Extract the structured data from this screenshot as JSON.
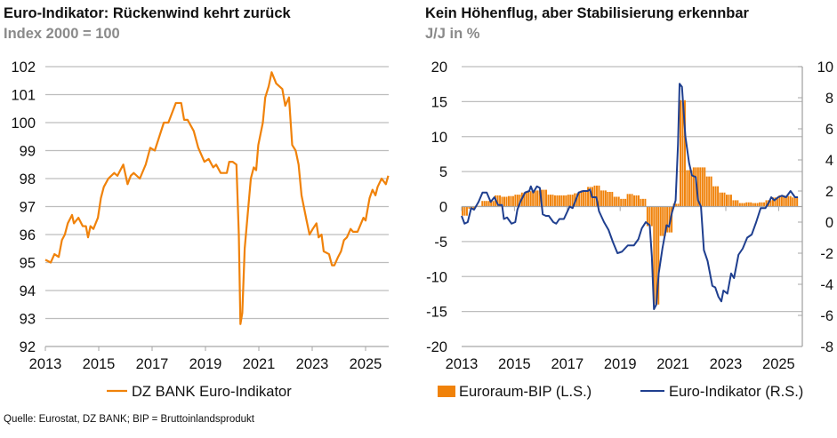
{
  "chart_data": [
    {
      "type": "line",
      "title": "Euro-Indikator: Rückenwind kehrt zurück",
      "subtitle": "Index 2000 = 100",
      "ylim": [
        92,
        102
      ],
      "yticks": [
        "92",
        "93",
        "94",
        "95",
        "96",
        "97",
        "98",
        "99",
        "100",
        "101",
        "102"
      ],
      "xticks": [
        "2013",
        "2015",
        "2017",
        "2019",
        "2021",
        "2023",
        "2025"
      ],
      "grid": true,
      "legend": "bottom",
      "series": [
        {
          "name": "DZ BANK Euro-Indikator",
          "color": "#f0820a",
          "x": [
            2013.0,
            2013.2,
            2013.34,
            2013.5,
            2013.62,
            2013.73,
            2013.84,
            2014.0,
            2014.07,
            2014.24,
            2014.4,
            2014.52,
            2014.6,
            2014.69,
            2014.8,
            2014.97,
            2015.08,
            2015.19,
            2015.36,
            2015.58,
            2015.7,
            2015.92,
            2016.08,
            2016.2,
            2016.31,
            2016.54,
            2016.76,
            2016.93,
            2017.1,
            2017.27,
            2017.44,
            2017.61,
            2017.89,
            2018.09,
            2018.2,
            2018.33,
            2018.56,
            2018.73,
            2018.96,
            2019.12,
            2019.29,
            2019.4,
            2019.57,
            2019.8,
            2019.89,
            2020.02,
            2020.16,
            2020.25,
            2020.31,
            2020.38,
            2020.47,
            2020.7,
            2020.81,
            2020.9,
            2020.98,
            2021.15,
            2021.24,
            2021.37,
            2021.48,
            2021.65,
            2021.88,
            2021.99,
            2022.13,
            2022.25,
            2022.38,
            2022.49,
            2022.6,
            2022.79,
            2022.9,
            2023.02,
            2023.16,
            2023.24,
            2023.35,
            2023.43,
            2023.63,
            2023.74,
            2023.83,
            2023.97,
            2024.08,
            2024.19,
            2024.3,
            2024.44,
            2024.53,
            2024.7,
            2024.92,
            2025.0,
            2025.15,
            2025.26,
            2025.37,
            2025.45,
            2025.6,
            2025.76,
            2025.85
          ],
          "y": [
            95.1,
            95.0,
            95.3,
            95.2,
            95.8,
            96.0,
            96.4,
            96.7,
            96.4,
            96.6,
            96.3,
            96.3,
            95.9,
            96.3,
            96.2,
            96.6,
            97.3,
            97.7,
            98.0,
            98.2,
            98.1,
            98.5,
            97.8,
            98.1,
            98.2,
            98.0,
            98.5,
            99.1,
            99.0,
            99.5,
            100.0,
            100.0,
            100.7,
            100.7,
            100.1,
            100.1,
            99.7,
            99.1,
            98.6,
            98.7,
            98.4,
            98.5,
            98.2,
            98.2,
            98.6,
            98.6,
            98.5,
            96.0,
            92.8,
            93.2,
            95.5,
            98.0,
            98.4,
            98.3,
            99.2,
            100.0,
            100.9,
            101.3,
            101.8,
            101.4,
            101.2,
            100.6,
            100.9,
            99.2,
            99.0,
            98.5,
            97.4,
            96.5,
            96.0,
            96.2,
            96.4,
            95.9,
            96.0,
            95.4,
            95.3,
            94.9,
            94.9,
            95.2,
            95.4,
            95.8,
            95.9,
            96.2,
            96.1,
            96.1,
            96.6,
            96.5,
            97.3,
            97.6,
            97.4,
            97.7,
            98.0,
            97.8,
            98.1
          ]
        }
      ]
    },
    {
      "type": "bar+line",
      "title": "Kein Höhenflug, aber Stabilisierung erkennbar",
      "subtitle": "J/J in %",
      "ylim_left": [
        -20,
        20
      ],
      "yticks_left": [
        "-20",
        "-15",
        "-10",
        "-5",
        "0",
        "5",
        "10",
        "15",
        "20"
      ],
      "ylim_right": [
        -8,
        10
      ],
      "yticks_right": [
        "-8",
        "-6",
        "-4",
        "-2",
        "0",
        "2",
        "4",
        "6",
        "8",
        "10"
      ],
      "xticks": [
        "2013",
        "2015",
        "2017",
        "2019",
        "2021",
        "2023",
        "2025"
      ],
      "grid": true,
      "legend": "bottom",
      "series": [
        {
          "name": "Euroraum-BIP (L.S.)",
          "type": "bar",
          "axis": "left",
          "color": "#f0820a",
          "quarters": [
            "2013Q1",
            "2013Q2",
            "2013Q3",
            "2013Q4",
            "2014Q1",
            "2014Q2",
            "2014Q3",
            "2014Q4",
            "2015Q1",
            "2015Q2",
            "2015Q3",
            "2015Q4",
            "2016Q1",
            "2016Q2",
            "2016Q3",
            "2016Q4",
            "2017Q1",
            "2017Q2",
            "2017Q3",
            "2017Q4",
            "2018Q1",
            "2018Q2",
            "2018Q3",
            "2018Q4",
            "2019Q1",
            "2019Q2",
            "2019Q3",
            "2019Q4",
            "2020Q1",
            "2020Q2",
            "2020Q3",
            "2020Q4",
            "2021Q1",
            "2021Q2",
            "2021Q3",
            "2021Q4",
            "2022Q1",
            "2022Q2",
            "2022Q3",
            "2022Q4",
            "2023Q1",
            "2023Q2",
            "2023Q3",
            "2023Q4",
            "2024Q1",
            "2024Q2",
            "2024Q3",
            "2024Q4",
            "2025Q1",
            "2025Q2",
            "2025Q3"
          ],
          "values": [
            -1.3,
            -0.3,
            0.1,
            0.8,
            0.8,
            1.6,
            1.4,
            1.5,
            1.7,
            2.0,
            2.2,
            2.3,
            2.4,
            1.7,
            1.6,
            1.6,
            1.7,
            1.9,
            2.3,
            2.8,
            3.0,
            2.3,
            2.1,
            1.4,
            1.1,
            1.8,
            1.6,
            1.1,
            -2.8,
            -14.0,
            -4.2,
            -3.7,
            0.4,
            15.2,
            5.2,
            5.6,
            5.6,
            4.3,
            2.9,
            2.0,
            1.7,
            0.9,
            0.5,
            0.6,
            0.5,
            0.6,
            0.9,
            1.3,
            1.6,
            1.5,
            1.3
          ]
        },
        {
          "name": "Euro-Indikator (R.S.)",
          "type": "line",
          "axis": "right",
          "color": "#1f3f8f",
          "x": [
            2013.0,
            2013.11,
            2013.23,
            2013.36,
            2013.47,
            2013.64,
            2013.79,
            2013.95,
            2014.1,
            2014.24,
            2014.38,
            2014.53,
            2014.6,
            2014.72,
            2014.89,
            2015.03,
            2015.11,
            2015.22,
            2015.4,
            2015.56,
            2015.62,
            2015.71,
            2015.85,
            2015.96,
            2016.07,
            2016.19,
            2016.3,
            2016.47,
            2016.58,
            2016.7,
            2016.87,
            2016.98,
            2017.09,
            2017.2,
            2017.43,
            2017.6,
            2017.77,
            2017.86,
            2017.94,
            2018.1,
            2018.2,
            2018.39,
            2018.56,
            2018.73,
            2018.9,
            2019.07,
            2019.18,
            2019.29,
            2019.41,
            2019.52,
            2019.69,
            2019.82,
            2019.97,
            2020.12,
            2020.2,
            2020.28,
            2020.37,
            2020.46,
            2020.6,
            2020.76,
            2020.85,
            2020.96,
            2021.1,
            2021.19,
            2021.25,
            2021.34,
            2021.47,
            2021.61,
            2021.72,
            2021.86,
            2021.95,
            2022.06,
            2022.17,
            2022.31,
            2022.49,
            2022.6,
            2022.72,
            2022.83,
            2022.91,
            2023.06,
            2023.2,
            2023.31,
            2023.48,
            2023.64,
            2023.81,
            2023.98,
            2024.15,
            2024.32,
            2024.5,
            2024.64,
            2024.72,
            2024.84,
            2024.98,
            2025.12,
            2025.28,
            2025.45,
            2025.62,
            2025.73
          ],
          "y": [
            0.4,
            -0.1,
            0.0,
            0.9,
            0.8,
            1.3,
            1.9,
            1.9,
            1.3,
            1.6,
            1.1,
            1.1,
            0.2,
            0.3,
            -0.1,
            0.0,
            0.8,
            1.3,
            1.9,
            2.0,
            2.3,
            1.9,
            2.3,
            2.2,
            0.5,
            0.4,
            0.4,
            0.0,
            -0.1,
            0.2,
            0.2,
            0.6,
            1.0,
            0.9,
            1.9,
            2.0,
            2.0,
            2.1,
            1.6,
            1.6,
            0.7,
            0.0,
            -0.5,
            -1.3,
            -2.0,
            -1.9,
            -1.7,
            -1.5,
            -1.5,
            -1.5,
            -1.1,
            -0.4,
            0.0,
            -0.2,
            -2.2,
            -5.6,
            -5.3,
            -3.3,
            -1.7,
            -0.2,
            -0.3,
            0.6,
            1.4,
            5.0,
            8.9,
            8.7,
            5.5,
            3.8,
            3.0,
            2.9,
            1.4,
            1.0,
            -1.8,
            -2.5,
            -4.1,
            -4.2,
            -4.8,
            -5.1,
            -4.4,
            -4.6,
            -3.3,
            -3.6,
            -2.1,
            -1.7,
            -1.0,
            -0.8,
            0.0,
            0.9,
            0.9,
            1.3,
            1.6,
            1.4,
            1.6,
            1.7,
            1.6,
            2.0,
            1.6,
            1.6
          ]
        }
      ]
    }
  ],
  "footer": {
    "source": "Quelle: Eurostat, DZ BANK; BIP = Bruttoinlandsprodukt"
  }
}
